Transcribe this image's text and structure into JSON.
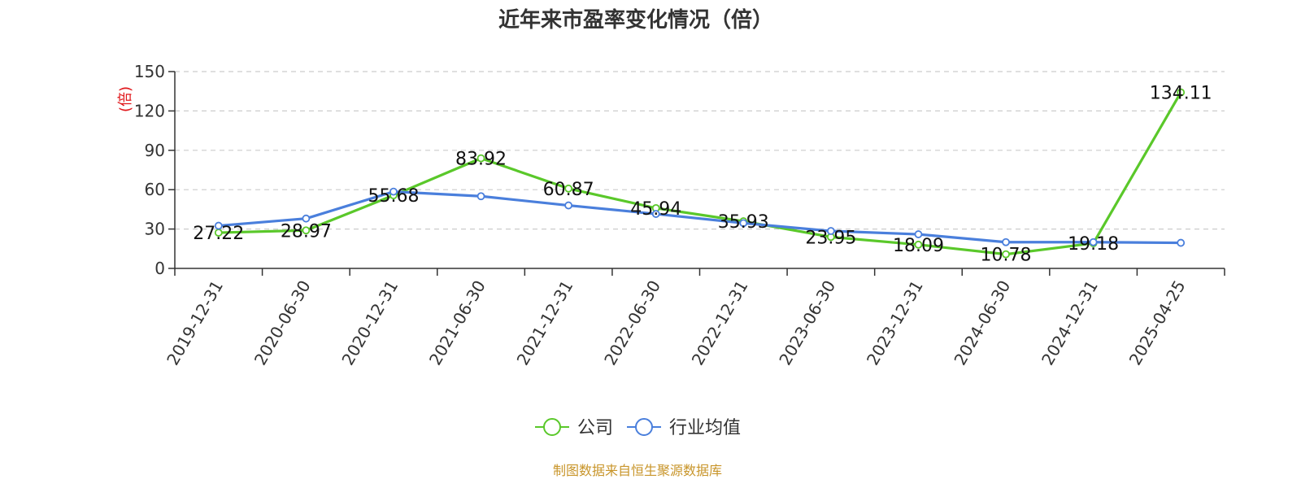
{
  "chart_data": {
    "type": "line",
    "title": "近年来市盈率变化情况（倍）",
    "ylabel": "(倍)",
    "ylim": [
      0,
      150
    ],
    "yticks": [
      0,
      30,
      60,
      90,
      120,
      150
    ],
    "categories": [
      "2019-12-31",
      "2020-06-30",
      "2020-12-31",
      "2021-06-30",
      "2021-12-31",
      "2022-06-30",
      "2022-12-31",
      "2023-06-30",
      "2023-12-31",
      "2024-06-30",
      "2024-12-31",
      "2025-04-25"
    ],
    "series": [
      {
        "name": "公司",
        "color": "#5ac82a",
        "values": [
          27.22,
          28.97,
          55.68,
          83.92,
          60.87,
          45.94,
          35.93,
          23.95,
          18.09,
          10.78,
          19.18,
          134.11
        ],
        "labels": [
          "27.22",
          "28.97",
          "55.68",
          "83.92",
          "60.87",
          "45.94",
          "35.93",
          "23.95",
          "18.09",
          "10.78",
          "19.18",
          "134.11"
        ]
      },
      {
        "name": "行业均值",
        "color": "#4a7fdc",
        "values": [
          32.5,
          38.0,
          58.5,
          55.0,
          48.0,
          41.5,
          34.5,
          28.5,
          26.0,
          20.0,
          20.0,
          19.5
        ]
      }
    ],
    "grid": true,
    "legend_position": "bottom-center"
  },
  "source_note": "制图数据来自恒生聚源数据库"
}
